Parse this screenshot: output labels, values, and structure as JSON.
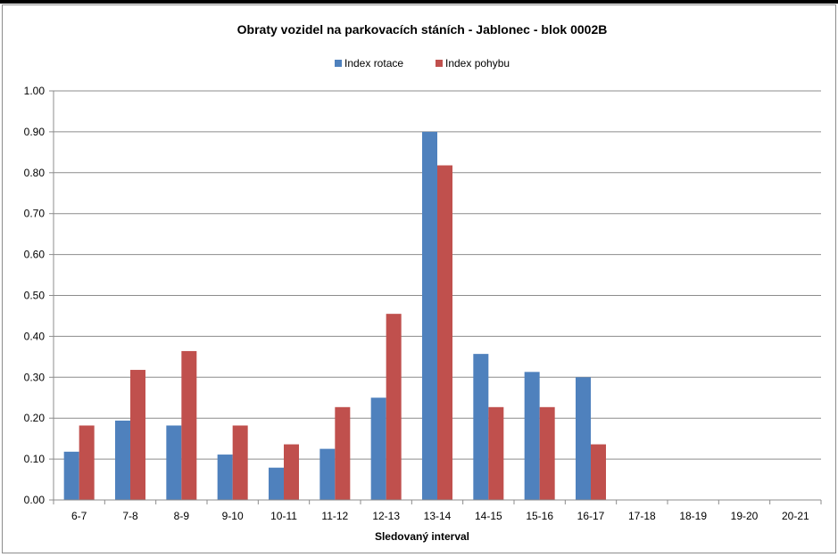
{
  "chart_data": {
    "type": "bar",
    "title": "Obraty vozidel na parkovacích stáních - Jablonec - blok 0002B",
    "xlabel": "Sledovaný interval",
    "ylabel": "",
    "ylim": [
      0,
      1.0
    ],
    "yticks": [
      "0.00",
      "0.10",
      "0.20",
      "0.30",
      "0.40",
      "0.50",
      "0.60",
      "0.70",
      "0.80",
      "0.90",
      "1.00"
    ],
    "grid": true,
    "legend_position": "top",
    "categories": [
      "6-7",
      "7-8",
      "8-9",
      "9-10",
      "10-11",
      "11-12",
      "12-13",
      "13-14",
      "14-15",
      "15-16",
      "16-17",
      "17-18",
      "18-19",
      "19-20",
      "20-21"
    ],
    "series": [
      {
        "name": "Index rotace",
        "color": "#4f81bd",
        "values": [
          0.118,
          0.194,
          0.182,
          0.111,
          0.079,
          0.125,
          0.25,
          0.9,
          0.357,
          0.313,
          0.3,
          0,
          0,
          0,
          0
        ]
      },
      {
        "name": "Index pohybu",
        "color": "#c0504d",
        "values": [
          0.182,
          0.318,
          0.364,
          0.182,
          0.136,
          0.227,
          0.455,
          0.818,
          0.227,
          0.227,
          0.136,
          0,
          0,
          0,
          0
        ]
      }
    ]
  }
}
